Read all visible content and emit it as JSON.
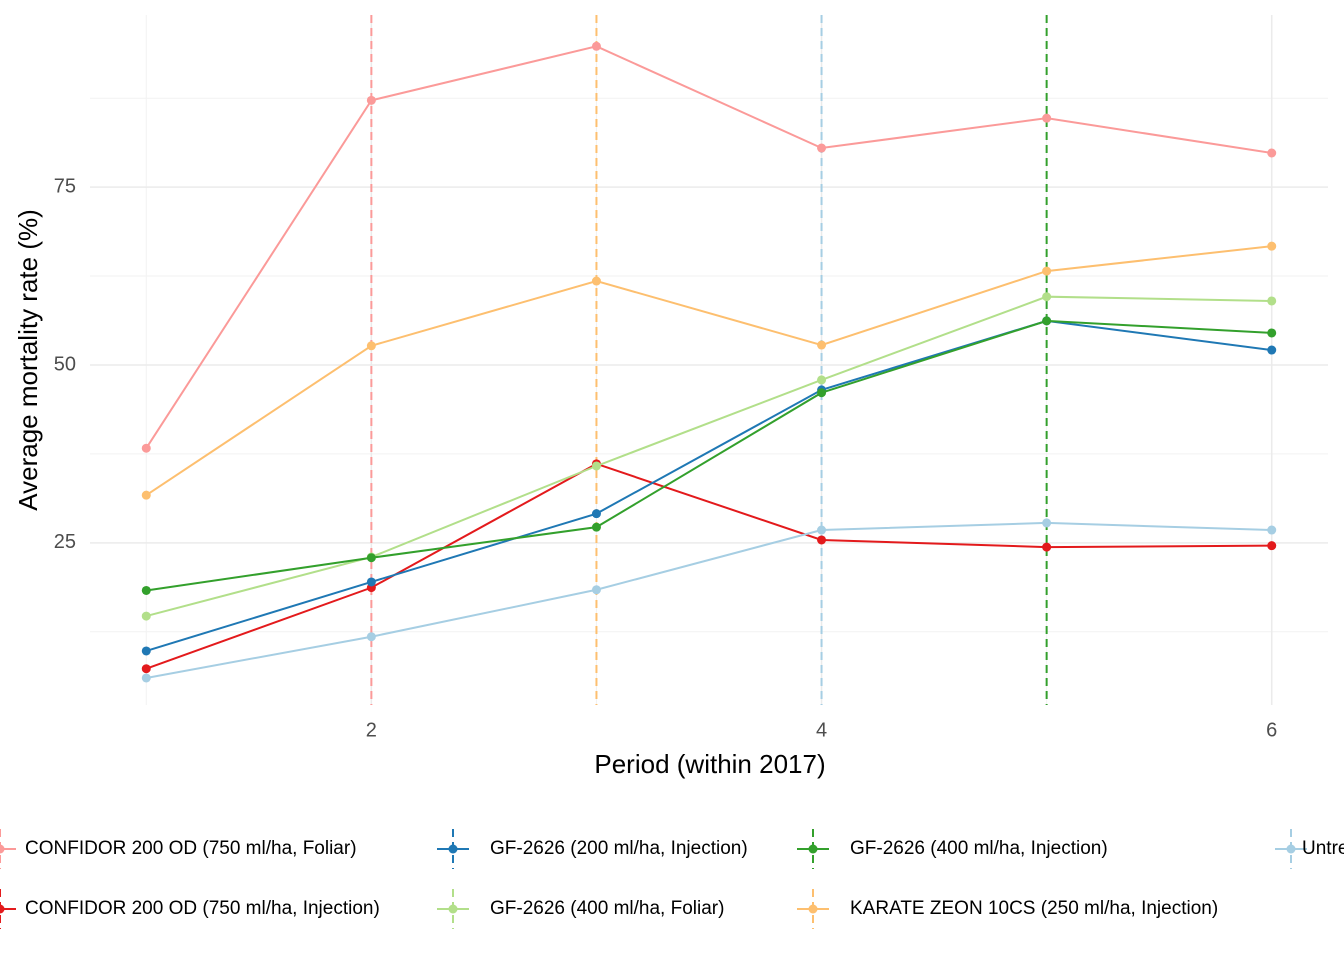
{
  "chart_data": {
    "type": "line",
    "x_label": "Period (within 2017)",
    "y_label": "Average mortality rate (%)",
    "x": [
      1,
      2,
      3,
      4,
      5,
      6
    ],
    "series": [
      {
        "name": "CONFIDOR 200 OD (750 ml/ha, Foliar)",
        "color": "#fb9a99",
        "values": [
          38.3,
          87.2,
          94.8,
          80.5,
          84.7,
          79.8
        ]
      },
      {
        "name": "CONFIDOR 200 OD (750 ml/ha, Injection)",
        "color": "#e31a1c",
        "values": [
          7.3,
          18.7,
          36.1,
          25.4,
          24.4,
          24.6
        ]
      },
      {
        "name": "GF-2626 (200 ml/ha, Injection)",
        "color": "#1f78b4",
        "values": [
          9.8,
          19.5,
          29.1,
          46.5,
          56.2,
          52.1
        ]
      },
      {
        "name": "GF-2626 (400 ml/ha, Foliar)",
        "color": "#b2df8a",
        "values": [
          14.7,
          23.0,
          35.8,
          47.9,
          59.6,
          59.0
        ]
      },
      {
        "name": "GF-2626 (400 ml/ha, Injection)",
        "color": "#33a02c",
        "values": [
          18.3,
          22.9,
          27.2,
          46.1,
          56.2,
          54.5
        ]
      },
      {
        "name": "KARATE ZEON 10CS (250 ml/ha, Injection)",
        "color": "#fdbf6f",
        "values": [
          31.7,
          52.7,
          61.8,
          52.8,
          63.2,
          66.7
        ]
      },
      {
        "name": "Untreated",
        "color": "#a6cee3",
        "values": [
          6.0,
          11.8,
          18.4,
          26.8,
          27.8,
          26.8
        ]
      }
    ],
    "vlines": [
      {
        "x": 2,
        "color": "#fb9a99"
      },
      {
        "x": 3,
        "color": "#fdbf6f"
      },
      {
        "x": 4,
        "color": "#a6cee3"
      },
      {
        "x": 5,
        "color": "#33a02c"
      }
    ],
    "xlim": [
      0.75,
      6.25
    ],
    "xticks": [
      2,
      4,
      6
    ],
    "x_minor_ticks": [
      1,
      3,
      5
    ],
    "ylim": [
      2.2,
      99.2
    ],
    "yticks": [
      25,
      50,
      75
    ],
    "y_minor_ticks": [
      12.5,
      37.5,
      62.5,
      87.5
    ],
    "grid": true,
    "legend": "bottom"
  }
}
